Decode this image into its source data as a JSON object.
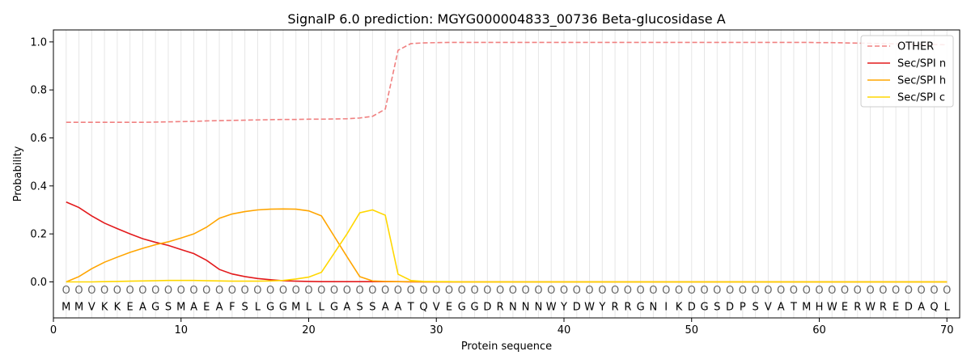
{
  "chart_data": {
    "type": "line",
    "title": "SignalP 6.0 prediction: MGYG000004833_00736 Beta-glucosidase A",
    "xlabel": "Protein sequence",
    "ylabel": "Probability",
    "xlim": [
      0,
      71
    ],
    "ylim": [
      -0.15,
      1.05
    ],
    "xticks": [
      0,
      10,
      20,
      30,
      40,
      50,
      60,
      70
    ],
    "yticks": [
      0.0,
      0.2,
      0.4,
      0.6,
      0.8,
      1.0
    ],
    "ytick_labels": [
      "0.0",
      "0.2",
      "0.4",
      "0.6",
      "0.8",
      "1.0"
    ],
    "legend_position": "top-right",
    "sequence": [
      "M",
      "M",
      "V",
      "K",
      "K",
      "E",
      "A",
      "G",
      "S",
      "M",
      "A",
      "E",
      "A",
      "F",
      "S",
      "L",
      "G",
      "G",
      "M",
      "L",
      "L",
      "G",
      "A",
      "S",
      "S",
      "A",
      "A",
      "T",
      "Q",
      "V",
      "E",
      "G",
      "G",
      "D",
      "R",
      "N",
      "N",
      "N",
      "W",
      "Y",
      "D",
      "W",
      "Y",
      "R",
      "R",
      "G",
      "N",
      "I",
      "K",
      "D",
      "G",
      "S",
      "D",
      "P",
      "S",
      "V",
      "A",
      "T",
      "M",
      "H",
      "W",
      "E",
      "R",
      "W",
      "R",
      "E",
      "D",
      "A",
      "Q",
      "L"
    ],
    "position_marker": "O",
    "series": [
      {
        "name": "OTHER",
        "color": "#f08080",
        "dashed": true,
        "values": [
          0.665,
          0.665,
          0.665,
          0.665,
          0.665,
          0.665,
          0.665,
          0.666,
          0.667,
          0.668,
          0.669,
          0.671,
          0.672,
          0.673,
          0.674,
          0.675,
          0.676,
          0.677,
          0.677,
          0.678,
          0.678,
          0.679,
          0.68,
          0.683,
          0.69,
          0.72,
          0.965,
          0.993,
          0.996,
          0.997,
          0.998,
          0.998,
          0.998,
          0.998,
          0.998,
          0.998,
          0.998,
          0.998,
          0.998,
          0.998,
          0.998,
          0.998,
          0.998,
          0.998,
          0.998,
          0.998,
          0.998,
          0.998,
          0.998,
          0.998,
          0.998,
          0.998,
          0.998,
          0.998,
          0.998,
          0.998,
          0.998,
          0.998,
          0.998,
          0.997,
          0.997,
          0.996,
          0.995,
          0.994,
          0.993,
          0.992,
          0.991,
          0.99,
          0.989,
          0.988
        ]
      },
      {
        "name": "Sec/SPI n",
        "color": "#e31a1c",
        "dashed": false,
        "values": [
          0.333,
          0.31,
          0.275,
          0.245,
          0.222,
          0.2,
          0.18,
          0.165,
          0.152,
          0.135,
          0.118,
          0.09,
          0.052,
          0.033,
          0.022,
          0.014,
          0.009,
          0.005,
          0.003,
          0.002,
          0.001,
          0.001,
          0.001,
          0.001,
          0.001,
          0.001,
          0.001,
          0,
          0,
          0,
          0,
          0,
          0,
          0,
          0,
          0,
          0,
          0,
          0,
          0,
          0,
          0,
          0,
          0,
          0,
          0,
          0,
          0,
          0,
          0,
          0,
          0,
          0,
          0,
          0,
          0,
          0,
          0,
          0,
          0,
          0,
          0,
          0,
          0,
          0,
          0,
          0,
          0,
          0,
          0
        ]
      },
      {
        "name": "Sec/SPI h",
        "color": "#ffa500",
        "dashed": false,
        "values": [
          0.0,
          0.022,
          0.055,
          0.082,
          0.103,
          0.123,
          0.14,
          0.155,
          0.167,
          0.183,
          0.2,
          0.228,
          0.265,
          0.283,
          0.293,
          0.3,
          0.303,
          0.304,
          0.303,
          0.296,
          0.275,
          0.19,
          0.105,
          0.022,
          0.004,
          0.002,
          0.001,
          0.001,
          0,
          0,
          0,
          0,
          0,
          0,
          0,
          0,
          0,
          0,
          0,
          0,
          0,
          0,
          0,
          0,
          0,
          0,
          0,
          0,
          0,
          0,
          0,
          0,
          0,
          0,
          0,
          0,
          0,
          0,
          0,
          0,
          0,
          0,
          0,
          0,
          0,
          0,
          0,
          0,
          0,
          0
        ]
      },
      {
        "name": "Sec/SPI c",
        "color": "#ffd700",
        "dashed": false,
        "values": [
          0.0,
          0.0,
          0.0,
          0.001,
          0.002,
          0.003,
          0.004,
          0.005,
          0.006,
          0.006,
          0.006,
          0.005,
          0.004,
          0.003,
          0.003,
          0.003,
          0.004,
          0.006,
          0.012,
          0.02,
          0.04,
          0.12,
          0.2,
          0.288,
          0.3,
          0.278,
          0.032,
          0.006,
          0.002,
          0.001,
          0.001,
          0,
          0,
          0,
          0,
          0,
          0,
          0,
          0,
          0,
          0,
          0,
          0,
          0,
          0,
          0,
          0,
          0,
          0,
          0,
          0,
          0,
          0,
          0,
          0,
          0,
          0,
          0,
          0,
          0,
          0,
          0,
          0,
          0,
          0,
          0,
          0,
          0,
          0,
          0
        ]
      }
    ]
  }
}
